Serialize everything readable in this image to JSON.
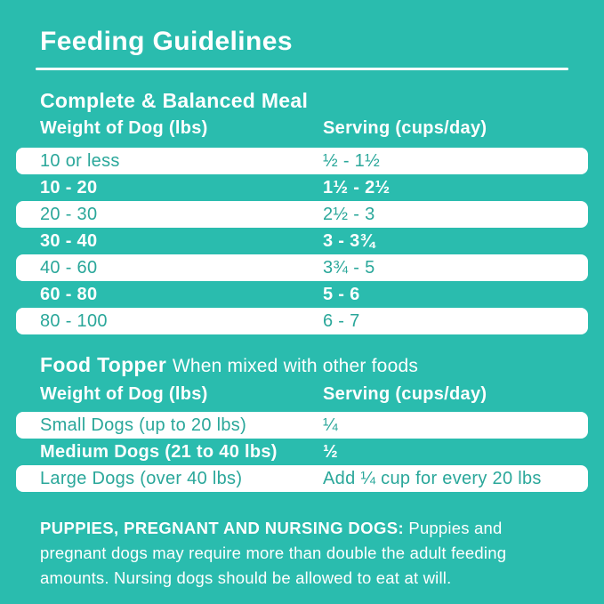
{
  "header": {
    "title": "Feeding Guidelines"
  },
  "meal_section": {
    "heading": "Complete & Balanced Meal",
    "col_weight": "Weight of Dog (lbs)",
    "col_serving": "Serving (cups/day)",
    "rows": [
      {
        "weight": "10 or less",
        "serving": "½ - 1½"
      },
      {
        "weight": "10 - 20",
        "serving": "1½ - 2½"
      },
      {
        "weight": "20 - 30",
        "serving": "2½ - 3"
      },
      {
        "weight": "30 - 40",
        "serving": "3 - 3¾"
      },
      {
        "weight": "40 - 60",
        "serving": "3¾ - 5"
      },
      {
        "weight": "60 - 80",
        "serving": "5 - 6"
      },
      {
        "weight": "80 - 100",
        "serving": "6 - 7"
      }
    ]
  },
  "topper_section": {
    "heading": "Food Topper",
    "subheading": "When mixed with other foods",
    "col_weight": "Weight of Dog (lbs)",
    "col_serving": "Serving (cups/day)",
    "rows": [
      {
        "weight": "Small Dogs (up to 20 lbs)",
        "serving": "¼"
      },
      {
        "weight": "Medium Dogs (21 to 40 lbs)",
        "serving": "½"
      },
      {
        "weight": "Large Dogs (over 40 lbs)",
        "serving": "Add ¼ cup for every 20 lbs"
      }
    ]
  },
  "footnote": {
    "label": "PUPPIES, PREGNANT AND NURSING DOGS:",
    "text": "Puppies and pregnant dogs may require more than double the adult feeding amounts. Nursing dogs should be allowed to eat at will."
  },
  "colors": {
    "background": "#2abcae",
    "row_background": "#ffffff",
    "row_text": "#2aa79a",
    "heading_text": "#ffffff"
  }
}
